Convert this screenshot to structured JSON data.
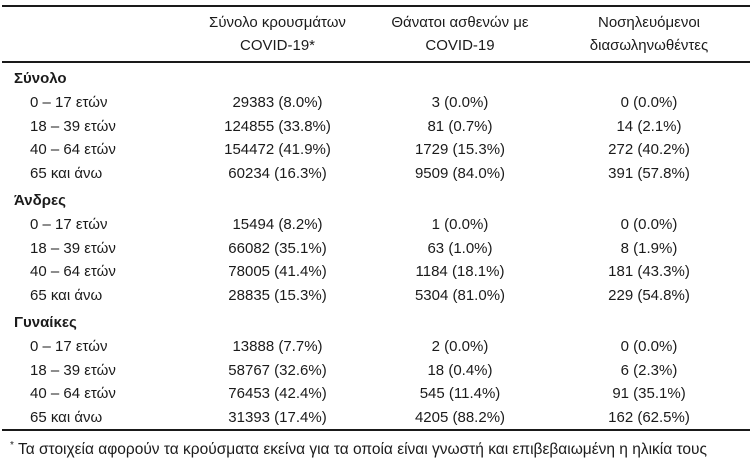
{
  "colors": {
    "background": "#ffffff",
    "text": "#1b1b1b",
    "rule": "#1a1a1a"
  },
  "table": {
    "headers": [
      {
        "line1": "Σύνολο κρουσμάτων",
        "line2": "COVID-19*"
      },
      {
        "line1": "Θάνατοι ασθενών με",
        "line2": "COVID-19"
      },
      {
        "line1": "Νοσηλευόμενοι",
        "line2": "διασωληνωθέντες"
      }
    ],
    "sections": [
      {
        "label": "Σύνολο",
        "rows": [
          {
            "age": "0 – 17 ετών",
            "cases": "29383 (8.0%)",
            "deaths": "3 (0.0%)",
            "intubated": "0 (0.0%)"
          },
          {
            "age": "18 – 39 ετών",
            "cases": "124855 (33.8%)",
            "deaths": "81 (0.7%)",
            "intubated": "14 (2.1%)"
          },
          {
            "age": "40 – 64 ετών",
            "cases": "154472 (41.9%)",
            "deaths": "1729 (15.3%)",
            "intubated": "272 (40.2%)"
          },
          {
            "age": "65 και άνω",
            "cases": "60234 (16.3%)",
            "deaths": "9509 (84.0%)",
            "intubated": "391 (57.8%)"
          }
        ]
      },
      {
        "label": "Άνδρες",
        "rows": [
          {
            "age": "0 – 17 ετών",
            "cases": "15494 (8.2%)",
            "deaths": "1 (0.0%)",
            "intubated": "0 (0.0%)"
          },
          {
            "age": "18 – 39 ετών",
            "cases": "66082 (35.1%)",
            "deaths": "63 (1.0%)",
            "intubated": "8 (1.9%)"
          },
          {
            "age": "40 – 64 ετών",
            "cases": "78005 (41.4%)",
            "deaths": "1184 (18.1%)",
            "intubated": "181 (43.3%)"
          },
          {
            "age": "65 και άνω",
            "cases": "28835 (15.3%)",
            "deaths": "5304 (81.0%)",
            "intubated": "229 (54.8%)"
          }
        ]
      },
      {
        "label": "Γυναίκες",
        "rows": [
          {
            "age": "0 – 17 ετών",
            "cases": "13888 (7.7%)",
            "deaths": "2 (0.0%)",
            "intubated": "0 (0.0%)"
          },
          {
            "age": "18 – 39 ετών",
            "cases": "58767 (32.6%)",
            "deaths": "18 (0.4%)",
            "intubated": "6 (2.3%)"
          },
          {
            "age": "40 – 64 ετών",
            "cases": "76453 (42.4%)",
            "deaths": "545 (11.4%)",
            "intubated": "91 (35.1%)"
          },
          {
            "age": "65 και άνω",
            "cases": "31393 (17.4%)",
            "deaths": "4205 (88.2%)",
            "intubated": "162 (62.5%)"
          }
        ]
      }
    ]
  },
  "footnote": {
    "marker": "*",
    "text": "Τα στοιχεία αφορούν τα κρούσματα εκείνα για τα οποία είναι γνωστή και επιβεβαιωμένη η ηλικία τους"
  }
}
